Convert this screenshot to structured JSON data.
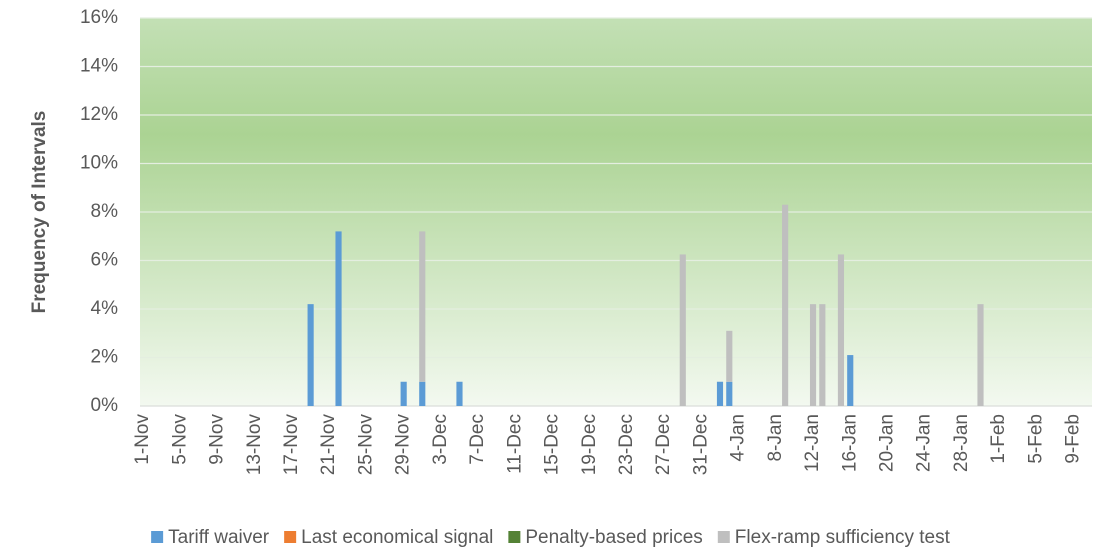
{
  "chart_data": {
    "type": "stacked-bar",
    "y_label": "Frequency of Intervals",
    "categories": [
      "1-Nov",
      null,
      null,
      null,
      "5-Nov",
      null,
      null,
      null,
      "9-Nov",
      null,
      null,
      null,
      "13-Nov",
      null,
      null,
      null,
      "17-Nov",
      null,
      null,
      null,
      "21-Nov",
      null,
      null,
      null,
      "25-Nov",
      null,
      null,
      null,
      "29-Nov",
      null,
      null,
      null,
      "3-Dec",
      null,
      null,
      null,
      "7-Dec",
      null,
      null,
      null,
      "11-Dec",
      null,
      null,
      null,
      "15-Dec",
      null,
      null,
      null,
      "19-Dec",
      null,
      null,
      null,
      "23-Dec",
      null,
      null,
      null,
      "27-Dec",
      null,
      null,
      null,
      "31-Dec",
      null,
      null,
      null,
      "4-Jan",
      null,
      null,
      null,
      "8-Jan",
      null,
      null,
      null,
      "12-Jan",
      null,
      null,
      null,
      "16-Jan",
      null,
      null,
      null,
      "20-Jan",
      null,
      null,
      null,
      "24-Jan",
      null,
      null,
      null,
      "28-Jan",
      null,
      null,
      null,
      "1-Feb",
      null,
      null,
      null,
      "5-Feb",
      null,
      null,
      null,
      "9-Feb",
      null
    ],
    "series": [
      {
        "name": "Tariff waiver",
        "color": "#5b9bd5",
        "values": [
          0,
          0,
          0,
          0,
          0,
          0,
          0,
          0,
          0,
          0,
          0,
          0,
          0,
          0,
          0,
          0,
          0,
          0,
          4.2,
          0,
          0,
          7.2,
          0,
          0,
          0,
          0,
          0,
          0,
          1,
          0,
          1,
          0,
          0,
          0,
          1,
          0,
          0,
          0,
          0,
          0,
          0,
          0,
          0,
          0,
          0,
          0,
          0,
          0,
          0,
          0,
          0,
          0,
          0,
          0,
          0,
          0,
          0,
          0,
          0,
          0,
          0,
          0,
          1,
          1,
          0,
          0,
          0,
          0,
          0,
          0,
          0,
          0,
          0,
          0,
          0,
          0,
          2.1,
          0,
          0,
          0,
          0,
          0,
          0,
          0,
          0,
          0,
          0,
          0,
          0,
          0,
          0,
          0,
          0,
          0,
          0,
          0,
          0,
          0,
          0,
          0,
          0,
          0
        ]
      },
      {
        "name": "Last economical signal",
        "color": "#ed7d31",
        "values": [
          0,
          0,
          0,
          0,
          0,
          0,
          0,
          0,
          0,
          0,
          0,
          0,
          0,
          0,
          0,
          0,
          0,
          0,
          0,
          0,
          0,
          0,
          0,
          0,
          0,
          0,
          0,
          0,
          0,
          0,
          0,
          0,
          0,
          0,
          0,
          0,
          0,
          0,
          0,
          0,
          0,
          0,
          0,
          0,
          0,
          0,
          0,
          0,
          0,
          0,
          0,
          0,
          0,
          0,
          0,
          0,
          0,
          0,
          0,
          0,
          0,
          0,
          0,
          0,
          0,
          0,
          0,
          0,
          0,
          0,
          0,
          0,
          0,
          0,
          0,
          0,
          0,
          0,
          0,
          0,
          0,
          0,
          0,
          0,
          0,
          0,
          0,
          0,
          0,
          0,
          0,
          0,
          0,
          0,
          0,
          0,
          0,
          0,
          0,
          0,
          0,
          0
        ]
      },
      {
        "name": "Penalty-based prices",
        "color": "#548235",
        "values": [
          0,
          0,
          0,
          0,
          0,
          0,
          0,
          0,
          0,
          0,
          0,
          0,
          0,
          0,
          0,
          0,
          0,
          0,
          0,
          0,
          0,
          0,
          0,
          0,
          0,
          0,
          0,
          0,
          0,
          0,
          0,
          0,
          0,
          0,
          0,
          0,
          0,
          0,
          0,
          0,
          0,
          0,
          0,
          0,
          0,
          0,
          0,
          0,
          0,
          0,
          0,
          0,
          0,
          0,
          0,
          0,
          0,
          0,
          0,
          0,
          0,
          0,
          0,
          0,
          0,
          0,
          0,
          0,
          0,
          0,
          0,
          0,
          0,
          0,
          0,
          0,
          0,
          0,
          0,
          0,
          0,
          0,
          0,
          0,
          0,
          0,
          0,
          0,
          0,
          0,
          0,
          0,
          0,
          0,
          0,
          0,
          0,
          0,
          0,
          0,
          0,
          0
        ]
      },
      {
        "name": "Flex-ramp sufficiency test",
        "color": "#bfbfbf",
        "values": [
          0,
          0,
          0,
          0,
          0,
          0,
          0,
          0,
          0,
          0,
          0,
          0,
          0,
          0,
          0,
          0,
          0,
          0,
          0,
          0,
          0,
          0,
          0,
          0,
          0,
          0,
          0,
          0,
          0,
          0,
          6.2,
          0,
          0,
          0,
          0,
          0,
          0,
          0,
          0,
          0,
          0,
          0,
          0,
          0,
          0,
          0,
          0,
          0,
          0,
          0,
          0,
          0,
          0,
          0,
          0,
          0,
          0,
          0,
          6.25,
          0,
          0,
          0,
          0,
          2.1,
          0,
          0,
          0,
          0,
          0,
          8.3,
          0,
          0,
          4.2,
          4.2,
          0,
          6.25,
          0,
          0,
          0,
          0,
          0,
          0,
          0,
          0,
          0,
          0,
          0,
          0,
          0,
          0,
          4.2,
          0,
          0,
          0,
          0,
          0,
          0,
          0,
          0,
          0,
          0,
          0
        ]
      }
    ],
    "ylim": [
      0,
      16
    ],
    "yticks": [
      {
        "value": 0,
        "label": "0%"
      },
      {
        "value": 2,
        "label": "2%"
      },
      {
        "value": 4,
        "label": "4%"
      },
      {
        "value": 6,
        "label": "6%"
      },
      {
        "value": 8,
        "label": "8%"
      },
      {
        "value": 10,
        "label": "10%"
      },
      {
        "value": 12,
        "label": "12%"
      },
      {
        "value": 14,
        "label": "14%"
      },
      {
        "value": 16,
        "label": "16%"
      }
    ],
    "grid": true,
    "legend": "bottom"
  }
}
